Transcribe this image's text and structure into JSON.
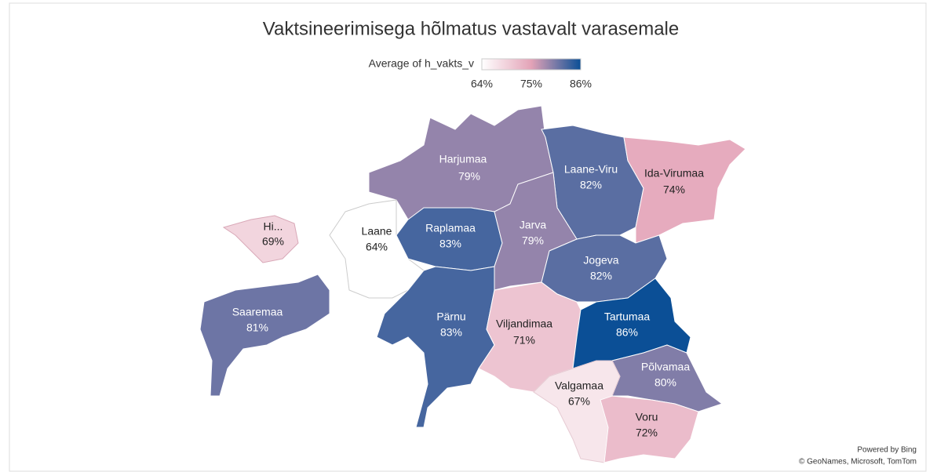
{
  "title": "Vaktsineerimisega hõlmatus vastavalt varasemale",
  "legend": {
    "title": "Average of h_vakts_v",
    "stops": [
      {
        "value": 64,
        "label": "64%",
        "color": "#ffffff"
      },
      {
        "value": 75,
        "label": "75%",
        "color": "#e3a3b7"
      },
      {
        "value": 86,
        "label": "86%",
        "color": "#0b4f96"
      }
    ]
  },
  "regions": [
    {
      "name": "Harjumaa",
      "value": 79,
      "label": "79%"
    },
    {
      "name": "Laane-Viru",
      "value": 82,
      "label": "82%"
    },
    {
      "name": "Ida-Virumaa",
      "value": 74,
      "label": "74%"
    },
    {
      "name": "Hi...",
      "value": 69,
      "label": "69%"
    },
    {
      "name": "Laane",
      "value": 64,
      "label": "64%"
    },
    {
      "name": "Raplamaa",
      "value": 83,
      "label": "83%"
    },
    {
      "name": "Jarva",
      "value": 79,
      "label": "79%"
    },
    {
      "name": "Jogeva",
      "value": 82,
      "label": "82%"
    },
    {
      "name": "Saaremaa",
      "value": 81,
      "label": "81%"
    },
    {
      "name": "Pärnu",
      "value": 83,
      "label": "83%"
    },
    {
      "name": "Viljandimaa",
      "value": 71,
      "label": "71%"
    },
    {
      "name": "Tartumaa",
      "value": 86,
      "label": "86%"
    },
    {
      "name": "Põlvamaa",
      "value": 80,
      "label": "80%"
    },
    {
      "name": "Valgamaa",
      "value": 67,
      "label": "67%"
    },
    {
      "name": "Voru",
      "value": 72,
      "label": "72%"
    }
  ],
  "attribution": [
    "Powered by Bing",
    "© GeoNames, Microsoft, TomTom"
  ]
}
